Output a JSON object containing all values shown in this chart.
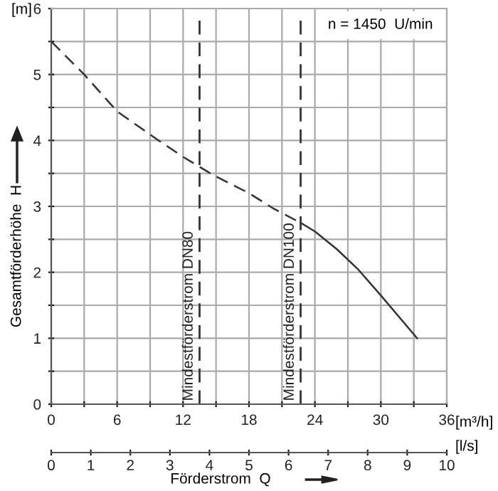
{
  "chart_data": {
    "type": "line",
    "xlabel": "Förderstrom  Q",
    "ylabel": "Gesamtförderhöhe  H",
    "x2label": "[l/s]",
    "annotations": [
      "[m]",
      "[m³/h]",
      "n = 1450  U/min"
    ],
    "xlim": [
      0,
      36
    ],
    "xticks": [
      0,
      {
        "value": 3,
        "label": null
      },
      6,
      {
        "value": 9,
        "label": null
      },
      12,
      {
        "value": 15,
        "label": null
      },
      18,
      {
        "value": 21,
        "label": null
      },
      24,
      {
        "value": 27,
        "label": null
      },
      30,
      {
        "value": 33,
        "label": null
      },
      36
    ],
    "ylim": [
      0,
      6
    ],
    "yticks": [
      0,
      {
        "value": 0.5,
        "label": null
      },
      1,
      {
        "value": 1.5,
        "label": null
      },
      2,
      {
        "value": 2.5,
        "label": null
      },
      3,
      {
        "value": 3.5,
        "label": null
      },
      4,
      {
        "value": 4.5,
        "label": null
      },
      5,
      {
        "value": 5.5,
        "label": null
      },
      6
    ],
    "x2lim": [
      0,
      10
    ],
    "x2ticks": [
      0,
      1,
      2,
      3,
      4,
      5,
      6,
      7,
      8,
      9,
      10
    ],
    "grid": true,
    "series": [
      {
        "color": "#333333",
        "line_style": "dashed",
        "x": [
          0,
          3,
          6,
          9.5,
          12,
          13.5,
          14.8,
          18,
          20.2,
          22.7
        ],
        "values": [
          5.5,
          5.0,
          4.44,
          4.03,
          3.75,
          3.6,
          3.47,
          3.2,
          2.97,
          2.75
        ]
      },
      {
        "color": "#333333",
        "line_style": "solid",
        "x": [
          22.7,
          24,
          26,
          27.9,
          30,
          33.3
        ],
        "values": [
          2.75,
          2.62,
          2.35,
          2.05,
          1.65,
          1.0
        ]
      }
    ],
    "ref_lines": [
      {
        "axis": "x",
        "value": 13.5,
        "label": "Mindestförderstrom DN80",
        "color": "#333333",
        "line_style": "dashed"
      },
      {
        "axis": "x",
        "value": 22.7,
        "label": "Mindestförderstrom DN100",
        "color": "#333333",
        "line_style": "dashed"
      }
    ]
  }
}
